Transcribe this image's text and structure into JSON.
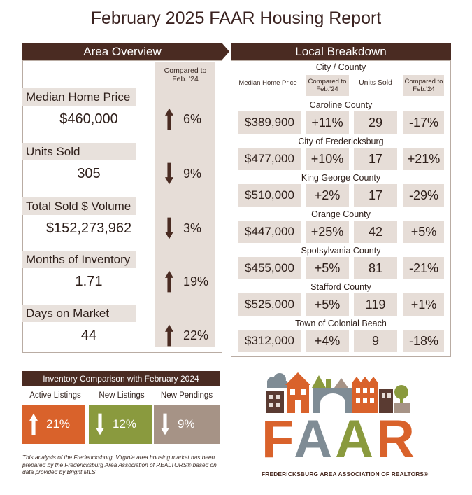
{
  "title": "February 2025 FAAR Housing Report",
  "overview": {
    "banner": "Area Overview",
    "compared_header": "Compared to Feb. '24",
    "metrics": [
      {
        "label": "Median Home Price",
        "value": "$460,000",
        "direction": "up",
        "pct": "6%"
      },
      {
        "label": "Units Sold",
        "value": "305",
        "direction": "down",
        "pct": "9%"
      },
      {
        "label": "Total Sold $ Volume",
        "value": "$152,273,962",
        "direction": "down",
        "pct": "3%"
      },
      {
        "label": "Months of Inventory",
        "value": "1.71",
        "direction": "up",
        "pct": "19%"
      },
      {
        "label": "Days on Market",
        "value": "44",
        "direction": "up",
        "pct": "22%"
      }
    ]
  },
  "breakdown": {
    "banner": "Local Breakdown",
    "city_header": "City / County",
    "col_median": "Median Home Price",
    "col_compared": "Compared to Feb.'24",
    "col_units": "Units Sold",
    "col_compared2": "Compared to Feb.'24",
    "rows": [
      {
        "name": "Caroline County",
        "median": "$389,900",
        "median_change": "+11%",
        "units": "29",
        "units_change": "-17%"
      },
      {
        "name": "City of Fredericksburg",
        "median": "$477,000",
        "median_change": "+10%",
        "units": "17",
        "units_change": "+21%"
      },
      {
        "name": "King George County",
        "median": "$510,000",
        "median_change": "+2%",
        "units": "17",
        "units_change": "-29%"
      },
      {
        "name": "Orange County",
        "median": "$447,000",
        "median_change": "+25%",
        "units": "42",
        "units_change": "+5%"
      },
      {
        "name": "Spotsylvania County",
        "median": "$455,000",
        "median_change": "+5%",
        "units": "81",
        "units_change": "-21%"
      },
      {
        "name": "Stafford County",
        "median": "$525,000",
        "median_change": "+5%",
        "units": "119",
        "units_change": "+1%"
      },
      {
        "name": "Town of Colonial Beach",
        "median": "$312,000",
        "median_change": "+4%",
        "units": "9",
        "units_change": "-18%"
      }
    ]
  },
  "inventory": {
    "banner": "Inventory Comparison with February 2024",
    "items": [
      {
        "label": "Active Listings",
        "direction": "up",
        "pct": "21%",
        "color": "#d9622b"
      },
      {
        "label": "New Listings",
        "direction": "down",
        "pct": "12%",
        "color": "#8a9a3e"
      },
      {
        "label": "New Pendings",
        "direction": "down",
        "pct": "9%",
        "color": "#a69386"
      }
    ]
  },
  "footnote": "This analysis of the Fredericksburg, Virginia area housing market has been prepared by the Fredericksburg Area Association of REALTORS® based on data provided by Bright MLS.",
  "logo": {
    "wordmark": "FAAR",
    "tagline": "FREDERICKSBURG AREA ASSOCIATION OF REALTORS®"
  },
  "colors": {
    "brown": "#4a2b22",
    "orange": "#d9622b",
    "green": "#8a9a3e",
    "taupe": "#a69386",
    "shade": "#e6ddd7"
  }
}
